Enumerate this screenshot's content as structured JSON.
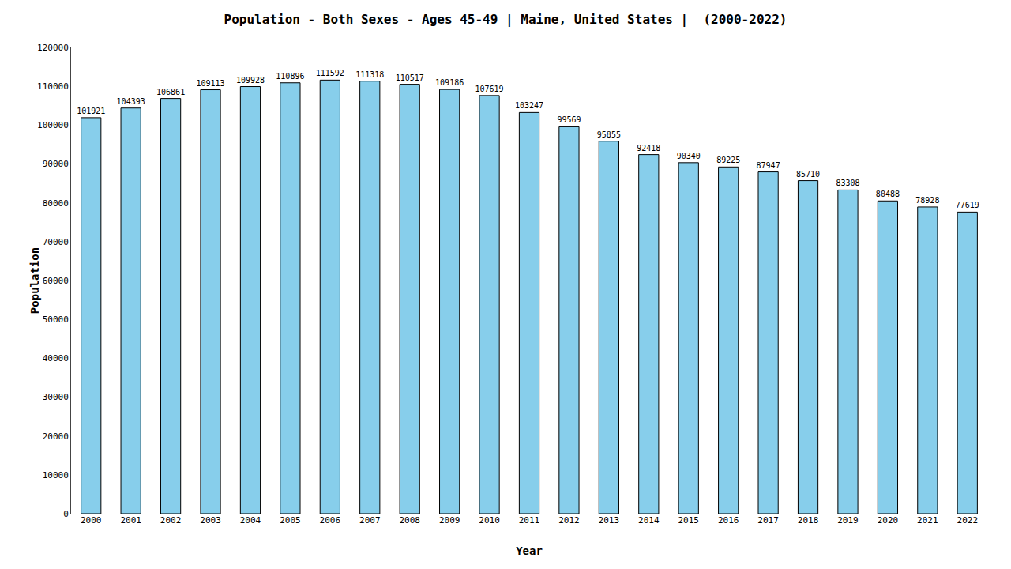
{
  "chart_data": {
    "type": "bar",
    "title": "Population - Both Sexes - Ages 45-49 | Maine, United States |  (2000-2022)",
    "xlabel": "Year",
    "ylabel": "Population",
    "categories": [
      "2000",
      "2001",
      "2002",
      "2003",
      "2004",
      "2005",
      "2006",
      "2007",
      "2008",
      "2009",
      "2010",
      "2011",
      "2012",
      "2013",
      "2014",
      "2015",
      "2016",
      "2017",
      "2018",
      "2019",
      "2020",
      "2021",
      "2022"
    ],
    "values": [
      101921,
      104393,
      106861,
      109113,
      109928,
      110896,
      111592,
      111318,
      110517,
      109186,
      107619,
      103247,
      99569,
      95855,
      92418,
      90340,
      89225,
      87947,
      85710,
      83308,
      80488,
      78928,
      77619
    ],
    "color": "#87ceeb",
    "ylim": [
      0,
      120000
    ],
    "yticks": [
      0,
      10000,
      20000,
      30000,
      40000,
      50000,
      60000,
      70000,
      80000,
      90000,
      100000,
      110000,
      120000
    ],
    "grid": false,
    "data_labels": true
  }
}
